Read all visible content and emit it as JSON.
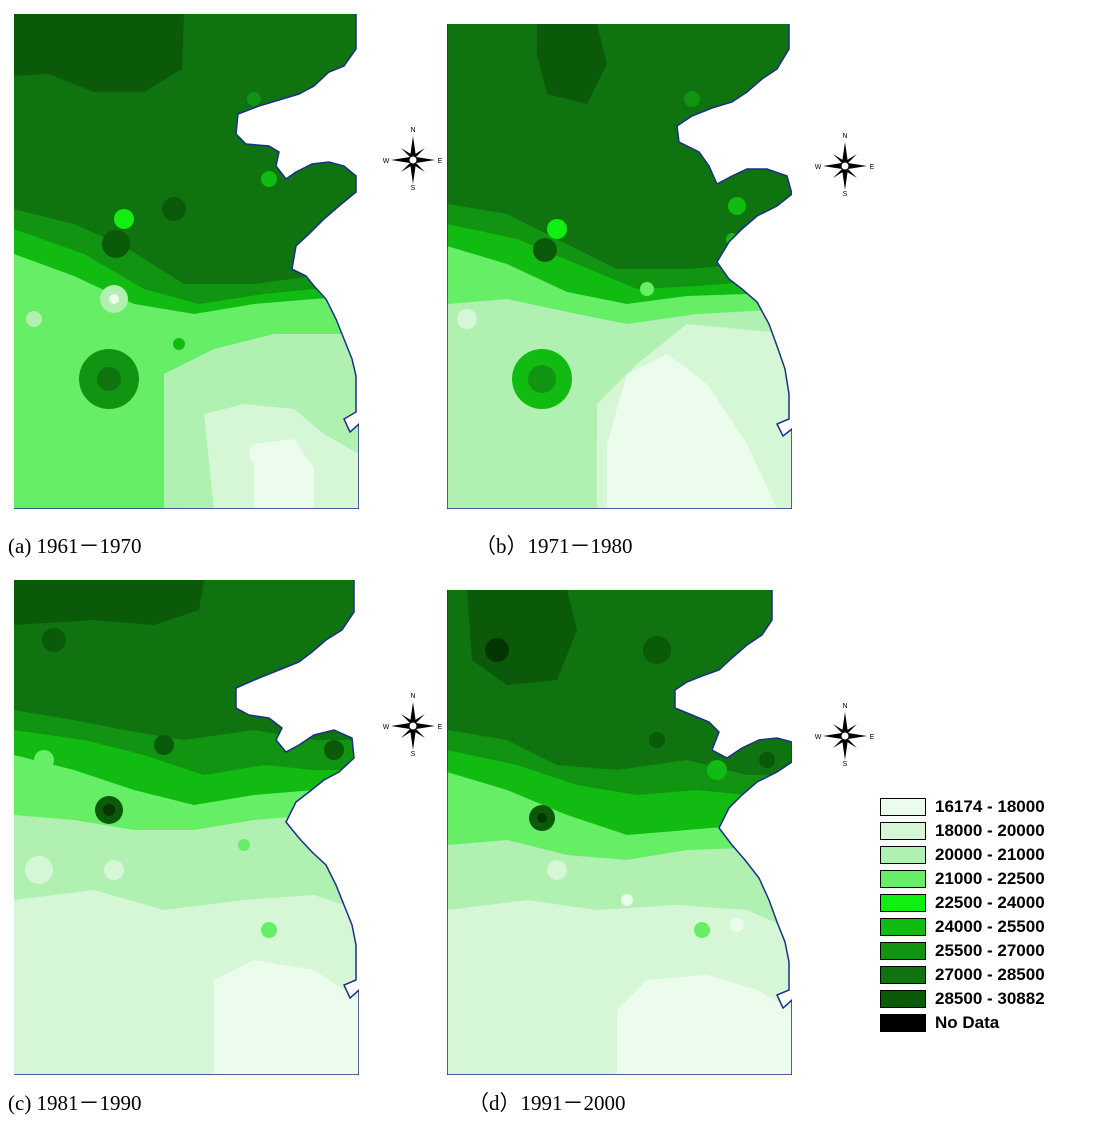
{
  "panels": [
    {
      "id": "a",
      "caption": "(a) 1961－1970"
    },
    {
      "id": "b",
      "caption": "（b）1971－1980"
    },
    {
      "id": "c",
      "caption": "(c) 1981－1990"
    },
    {
      "id": "d",
      "caption": "（d）1991－2000"
    }
  ],
  "compass": {
    "n": "N",
    "s": "S",
    "e": "E",
    "w": "W"
  },
  "legend": [
    {
      "label": "16174 - 18000",
      "color": "#ecfcec"
    },
    {
      "label": "18000 - 20000",
      "color": "#d5f7d5"
    },
    {
      "label": "20000 - 21000",
      "color": "#b0f0b0"
    },
    {
      "label": "21000 - 22500",
      "color": "#66ee66"
    },
    {
      "label": "22500 - 24000",
      "color": "#11ee11"
    },
    {
      "label": "24000 - 25500",
      "color": "#11bb11"
    },
    {
      "label": "25500 - 27000",
      "color": "#119411"
    },
    {
      "label": "27000 - 28500",
      "color": "#0f730f"
    },
    {
      "label": "28500 - 30882",
      "color": "#0a5a0a"
    },
    {
      "label": "No Data",
      "color": "#000000"
    }
  ]
}
